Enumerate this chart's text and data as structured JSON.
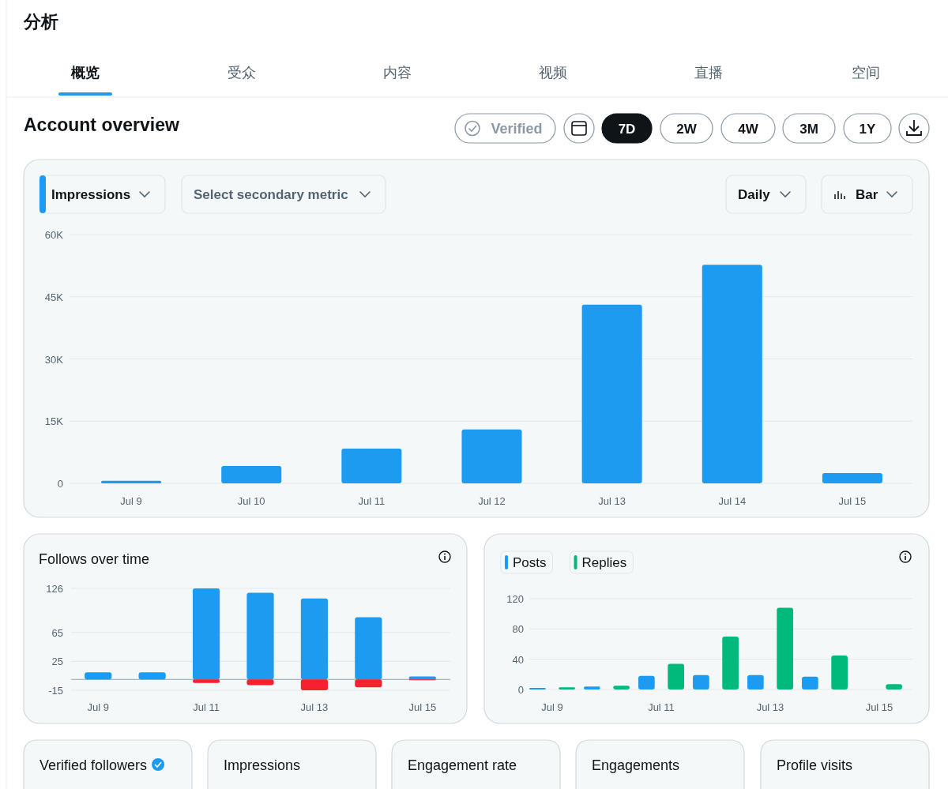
{
  "chart_data": [
    {
      "type": "other",
      "annotations": [
        "分析",
        "概览",
        "受众",
        "内容",
        "视频",
        "直播",
        "空间",
        "Account overview",
        "Verified",
        "7D",
        "2W",
        "4W",
        "3M",
        "1Y",
        "Impressions",
        "Select secondary metric",
        "Daily",
        "Bar"
      ]
    },
    {
      "type": "bar",
      "categories": [
        "Jul 9",
        "Jul 10",
        "Jul 11",
        "Jul 12",
        "Jul 13",
        "Jul 14",
        "Jul 15"
      ],
      "values": [
        600,
        4200,
        8400,
        13000,
        43100,
        52700,
        2500
      ],
      "color": "#1d9bf0",
      "ylim": [
        0,
        60000
      ],
      "yticks": [
        {
          "value": 0,
          "label": "0"
        },
        {
          "value": 15000,
          "label": "15K"
        },
        {
          "value": 30000,
          "label": "30K"
        },
        {
          "value": 45000,
          "label": "45K"
        },
        {
          "value": 60000,
          "label": "60K"
        }
      ],
      "grid": "y"
    },
    {
      "type": "bar",
      "title": "Follows over time",
      "categories": [
        "Jul 9",
        null,
        "Jul 11",
        null,
        "Jul 13",
        null,
        "Jul 15"
      ],
      "stacked": true,
      "series": [
        {
          "color": "#1d9bf0",
          "values": [
            10,
            10,
            126,
            120,
            112,
            86,
            4
          ]
        },
        {
          "color": "#f4212e",
          "values": [
            0,
            0,
            -5,
            -8,
            -15,
            -11,
            -1
          ]
        }
      ],
      "ylim": [
        -15,
        126
      ],
      "yticks": [
        126,
        65,
        25,
        -15
      ],
      "grid": "y"
    },
    {
      "type": "bar",
      "categories": [
        "Jul 9",
        null,
        "Jul 11",
        null,
        "Jul 13",
        null,
        "Jul 15"
      ],
      "legend": "top left",
      "series": [
        {
          "name": "Posts",
          "color": "#1d9bf0",
          "values": [
            2,
            4,
            18,
            19,
            19,
            17,
            null
          ]
        },
        {
          "name": "Replies",
          "color": "#00ba7c",
          "values": [
            3,
            5,
            34,
            70,
            108,
            45,
            7
          ]
        }
      ],
      "ylim": [
        0,
        120
      ],
      "yticks": [
        0,
        40,
        80,
        120
      ],
      "grid": "y"
    },
    {
      "type": "other",
      "annotations": [
        "Verified followers",
        "Impressions",
        "Engagement rate",
        "Engagements",
        "Profile visits"
      ]
    }
  ]
}
